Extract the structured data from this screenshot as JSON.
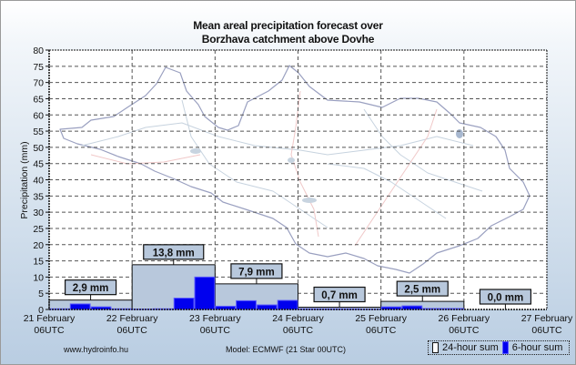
{
  "chart_data": {
    "type": "bar",
    "title": "Mean areal precipitation forecast over Borzhava catchment above Dovhe",
    "title_lines": [
      "Mean areal precipitation forecast over",
      "Borzhava catchment above Dovhe"
    ],
    "xlabel": "",
    "ylabel": "Precipitation (mm)",
    "ylim": [
      0,
      80
    ],
    "yticks": [
      0,
      5,
      10,
      15,
      20,
      25,
      30,
      35,
      40,
      45,
      50,
      55,
      60,
      65,
      70,
      75,
      80
    ],
    "grid": true,
    "x_ticks": [
      {
        "day": "21 February",
        "hour": "06UTC"
      },
      {
        "day": "22 February",
        "hour": "06UTC"
      },
      {
        "day": "23 February",
        "hour": "06UTC"
      },
      {
        "day": "24 February",
        "hour": "06UTC"
      },
      {
        "day": "25 February",
        "hour": "06UTC"
      },
      {
        "day": "26 February",
        "hour": "06UTC"
      },
      {
        "day": "27 February",
        "hour": "06UTC"
      }
    ],
    "series": [
      {
        "name": "24-hour sum",
        "color": "#b8c8dc",
        "values": [
          2.9,
          13.8,
          7.9,
          0.7,
          2.5,
          0.0
        ],
        "labels": [
          "2,9 mm",
          "13,8 mm",
          "7,9 mm",
          "0,7 mm",
          "2,5 mm",
          "0,0 mm"
        ]
      },
      {
        "name": "6-hour sum",
        "color": "#0000ee",
        "values": [
          0.2,
          1.7,
          0.8,
          0.2,
          0.1,
          0.2,
          3.5,
          10.0,
          1.0,
          2.7,
          1.4,
          2.8,
          0.2,
          0.2,
          0.2,
          0.1,
          0.8,
          1.1,
          0.3,
          0.3,
          0.0,
          0.0,
          0.0,
          0.0
        ]
      }
    ],
    "legend": "bottom-right"
  },
  "footer": {
    "source": "www.hydroinfo.hu",
    "model": "Model: ECMWF (21  Star 00UTC)"
  },
  "legend": {
    "daily_label": "24-hour sum",
    "sixhour_label": "6-hour sum"
  }
}
